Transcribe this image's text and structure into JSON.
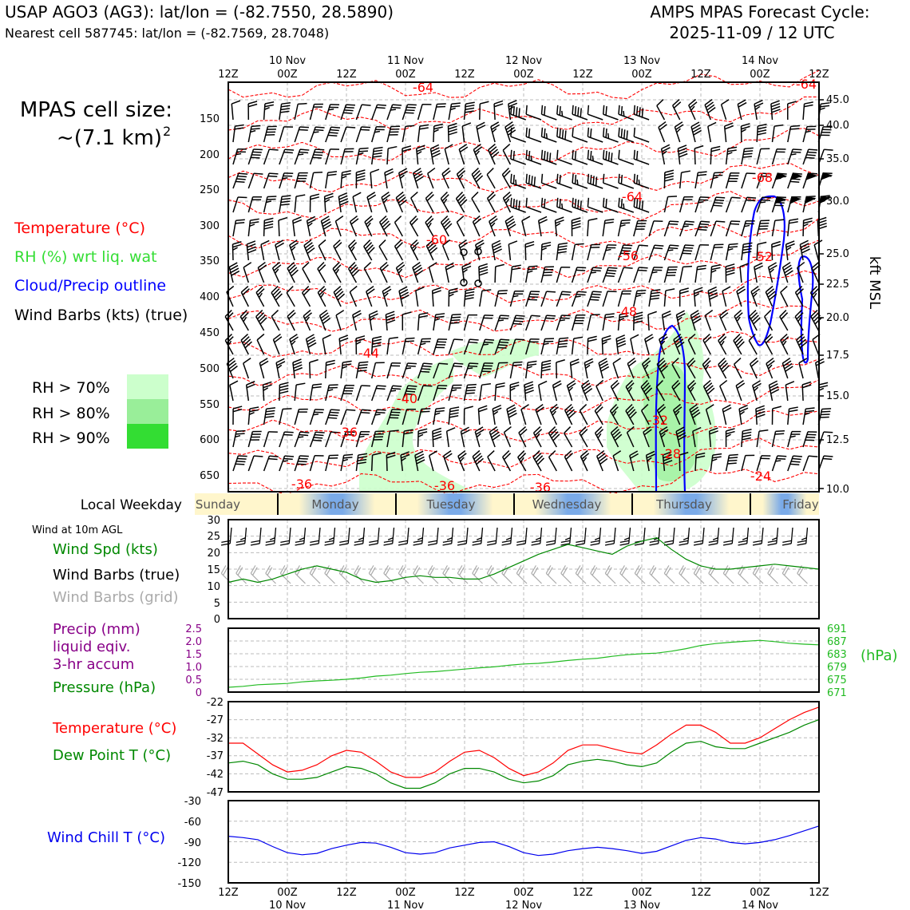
{
  "header": {
    "station": "USAP AGO3 (AG3): lat/lon = (-82.7550, 28.5890)",
    "nearest": "Nearest cell 587745: lat/lon = (-82.7569, 28.7048)",
    "cycle_title": "AMPS MPAS Forecast Cycle:",
    "cycle_date": "2025-11-09 / 12 UTC"
  },
  "cell_size": {
    "line1": "MPAS cell size:",
    "line2": "~(7.1 km)",
    "exp": "2"
  },
  "legend": {
    "temperature": "Temperature (°C)",
    "rh": "RH (%) wrt liq. wat",
    "cloud": "Cloud/Precip outline",
    "wind": "Wind Barbs (kts) (true)",
    "rh_levels": [
      "RH > 70%",
      "RH > 80%",
      "RH > 90%"
    ]
  },
  "colors": {
    "temp": "#ff0000",
    "rh_text": "#33dd33",
    "cloud": "#0000ff",
    "rh70": "#ccffcc",
    "rh80": "#99ee99",
    "rh90": "#33dd33",
    "green": "#008800",
    "pressure": "#22bb22",
    "purple": "#880088",
    "wind_chill": "#0000ee",
    "barb_grid": "#aaaaaa"
  },
  "time_axis": {
    "top_ticks": [
      "12Z",
      "00Z",
      "12Z",
      "00Z",
      "12Z",
      "00Z",
      "12Z",
      "00Z",
      "12Z",
      "00Z",
      "12Z"
    ],
    "dates": [
      "10 Nov",
      "11 Nov",
      "12 Nov",
      "13 Nov",
      "14 Nov"
    ]
  },
  "pressure_axis": {
    "ticks": [
      "150",
      "200",
      "250",
      "300",
      "350",
      "400",
      "450",
      "500",
      "550",
      "600",
      "650"
    ],
    "alt_ticks": [
      "45.0",
      "40.0",
      "35.0",
      "30.0",
      "25.0",
      "22.5",
      "20.0",
      "17.5",
      "15.0",
      "12.5",
      "10.0"
    ],
    "alt_label": "kft MSL"
  },
  "contour_labels": [
    "-64",
    "-64",
    "-64",
    "-68",
    "-60",
    "-56",
    "-52",
    "-48",
    "-44",
    "-40",
    "-36",
    "-32",
    "-28",
    "-36",
    "-36",
    "-36",
    "-24"
  ],
  "weekday": {
    "label": "Local Weekday",
    "days": [
      "Sunday",
      "Monday",
      "Tuesday",
      "Wednesday",
      "Thursday",
      "Friday"
    ]
  },
  "panel_wind": {
    "note": "Wind at 10m AGL",
    "spd": "Wind Spd (kts)",
    "barbs_true": "Wind Barbs (true)",
    "barbs_grid": "Wind Barbs (grid)",
    "yticks": [
      "30",
      "25",
      "20",
      "15",
      "10",
      "5",
      "0"
    ]
  },
  "panel_precip": {
    "l1": "Precip (mm)",
    "l2": "liquid eqiv.",
    "l3": "3-hr accum",
    "pressure": "Pressure (hPa)",
    "hpa": "(hPa)",
    "left_ticks": [
      "2.5",
      "2.0",
      "1.5",
      "1.0",
      "0.5",
      "0"
    ],
    "right_ticks": [
      "691",
      "687",
      "683",
      "679",
      "675",
      "671"
    ]
  },
  "panel_temp": {
    "temp": "Temperature (°C)",
    "dew": "Dew Point T (°C)",
    "yticks": [
      "-22",
      "-27",
      "-32",
      "-37",
      "-42",
      "-47"
    ]
  },
  "panel_chill": {
    "label": "Wind Chill T (°C)",
    "yticks": [
      "-30",
      "-60",
      "-90",
      "-120",
      "-150"
    ]
  },
  "chart_data": [
    {
      "type": "line",
      "title": "Wind at 10m AGL",
      "x_hours": [
        0,
        3,
        6,
        9,
        12,
        15,
        18,
        21,
        24,
        27,
        30,
        33,
        36,
        39,
        42,
        45,
        48,
        51,
        54,
        57,
        60,
        63,
        66,
        69,
        72,
        75,
        78,
        81,
        84,
        87,
        90,
        93,
        96,
        99,
        102,
        105,
        108,
        111,
        114,
        117,
        120
      ],
      "ylim": [
        0,
        30
      ],
      "series": [
        {
          "name": "Wind Spd (kts)",
          "values": [
            11,
            12,
            11,
            12,
            13.5,
            15,
            16,
            15,
            14,
            12,
            11,
            11.5,
            12.5,
            13,
            12.5,
            12.5,
            12,
            12,
            13.5,
            15.5,
            17.5,
            19.5,
            21,
            22.5,
            21.5,
            20.5,
            19.5,
            22,
            23.5,
            24.5,
            21,
            18,
            16,
            15,
            15,
            15.5,
            16,
            16.5,
            16,
            15.5,
            15
          ]
        }
      ]
    },
    {
      "type": "line",
      "title": "Pressure (hPa)",
      "x_hours": [
        0,
        3,
        6,
        9,
        12,
        15,
        18,
        21,
        24,
        27,
        30,
        33,
        36,
        39,
        42,
        45,
        48,
        51,
        54,
        57,
        60,
        63,
        66,
        69,
        72,
        75,
        78,
        81,
        84,
        87,
        90,
        93,
        96,
        99,
        102,
        105,
        108,
        111,
        114,
        117,
        120
      ],
      "ylim": [
        671,
        691
      ],
      "series": [
        {
          "name": "Pressure (hPa)",
          "values": [
            672.5,
            672.8,
            673.3,
            673.5,
            673.7,
            674.2,
            674.5,
            674.7,
            675.0,
            675.4,
            676.0,
            676.3,
            676.8,
            677.2,
            677.4,
            677.8,
            678.2,
            678.6,
            678.9,
            679.4,
            679.8,
            680.0,
            680.4,
            680.9,
            681.3,
            681.6,
            682.2,
            682.7,
            683.0,
            683.2,
            683.8,
            684.6,
            685.6,
            686.2,
            686.6,
            686.9,
            687.2,
            686.8,
            686.3,
            686.0,
            685.8
          ]
        }
      ]
    },
    {
      "type": "line",
      "title": "Temperature / Dew Point (°C)",
      "x_hours": [
        0,
        3,
        6,
        9,
        12,
        15,
        18,
        21,
        24,
        27,
        30,
        33,
        36,
        39,
        42,
        45,
        48,
        51,
        54,
        57,
        60,
        63,
        66,
        69,
        72,
        75,
        78,
        81,
        84,
        87,
        90,
        93,
        96,
        99,
        102,
        105,
        108,
        111,
        114,
        117,
        120
      ],
      "ylim": [
        -47,
        -22
      ],
      "series": [
        {
          "name": "Temperature (°C)",
          "values": [
            -33.5,
            -33.5,
            -36.5,
            -39.5,
            -41.5,
            -41.0,
            -39.5,
            -37.0,
            -35.5,
            -36.0,
            -38.5,
            -41.5,
            -43.0,
            -43.0,
            -41.5,
            -38.5,
            -36.0,
            -35.5,
            -37.5,
            -40.5,
            -42.5,
            -41.5,
            -39.0,
            -35.5,
            -34.0,
            -34.0,
            -35.0,
            -36.0,
            -36.5,
            -34.0,
            -31.0,
            -28.5,
            -28.5,
            -30.5,
            -33.5,
            -33.5,
            -32.0,
            -29.5,
            -27.0,
            -25.0,
            -23.5
          ]
        },
        {
          "name": "Dew Point T (°C)",
          "values": [
            -39.0,
            -38.5,
            -39.5,
            -42.0,
            -43.5,
            -43.5,
            -43.0,
            -41.5,
            -40.0,
            -40.5,
            -42.0,
            -44.5,
            -46.0,
            -46.0,
            -44.5,
            -42.0,
            -40.5,
            -40.5,
            -41.5,
            -43.5,
            -44.5,
            -44.0,
            -42.5,
            -39.5,
            -38.5,
            -38.0,
            -38.5,
            -39.5,
            -40.0,
            -39.0,
            -36.0,
            -33.5,
            -33.0,
            -34.5,
            -35.0,
            -35.0,
            -33.5,
            -32.0,
            -30.5,
            -28.5,
            -27.0
          ]
        }
      ]
    },
    {
      "type": "line",
      "title": "Wind Chill T (°C)",
      "x_hours": [
        0,
        3,
        6,
        9,
        12,
        15,
        18,
        21,
        24,
        27,
        30,
        33,
        36,
        39,
        42,
        45,
        48,
        51,
        54,
        57,
        60,
        63,
        66,
        69,
        72,
        75,
        78,
        81,
        84,
        87,
        90,
        93,
        96,
        99,
        102,
        105,
        108,
        111,
        114,
        117,
        120
      ],
      "ylim": [
        -150,
        -30
      ],
      "series": [
        {
          "name": "Wind Chill T (°C)",
          "values": [
            -82,
            -84,
            -87,
            -97,
            -106,
            -109,
            -107,
            -100,
            -95,
            -91,
            -92,
            -98,
            -106,
            -108,
            -106,
            -99,
            -95,
            -91,
            -90,
            -97,
            -106,
            -110,
            -108,
            -103,
            -100,
            -98,
            -100,
            -103,
            -107,
            -104,
            -96,
            -88,
            -84,
            -86,
            -91,
            -93,
            -91,
            -87,
            -81,
            -74,
            -67
          ]
        }
      ]
    }
  ]
}
